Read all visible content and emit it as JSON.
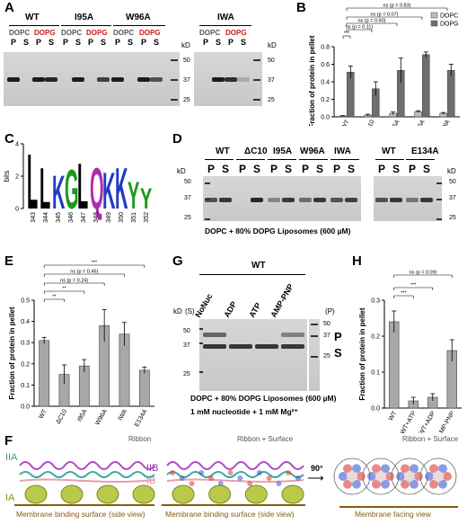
{
  "panels": {
    "A": {
      "label": "A",
      "groups": [
        "WT",
        "I95A",
        "W96A",
        "IWA"
      ],
      "lipids": [
        "DOPC",
        "DOPG"
      ],
      "lanes": [
        "P",
        "S"
      ],
      "kd": "kD",
      "markers": [
        "50",
        "37",
        "25"
      ]
    },
    "B": {
      "label": "B"
    },
    "C": {
      "label": "C",
      "ylabel": "bits",
      "positions": [
        "343",
        "344",
        "345",
        "346",
        "347",
        "348",
        "349",
        "350",
        "351",
        "352"
      ]
    },
    "D": {
      "label": "D",
      "groups": [
        "WT",
        "ΔC10",
        "I95A",
        "W96A",
        "IWA"
      ],
      "groups2": [
        "WT",
        "E134A"
      ],
      "lanes": [
        "P",
        "S"
      ],
      "kd": "kD",
      "markers": [
        "50",
        "37",
        "25"
      ],
      "caption": "DOPC + 80% DOPG Liposomes (600 µM)"
    },
    "E": {
      "label": "E"
    },
    "G": {
      "label": "G",
      "wt": "WT",
      "kd": "kD",
      "s_marker": "(S)",
      "p_marker": "(P)",
      "lanes": [
        "NoNuc",
        "ADP",
        "ATP",
        "AMP-PNP"
      ],
      "markers_left": [
        "50",
        "37",
        "25"
      ],
      "markers_right": [
        "50",
        "37",
        "25"
      ],
      "P": "P",
      "S": "S",
      "caption1": "DOPC + 80% DOPG Liposomes (600 µM)",
      "caption2": "1 mM nucleotide + 1 mM Mg²⁺"
    },
    "H": {
      "label": "H"
    },
    "F": {
      "label": "F",
      "title1": "Ribbon",
      "title2": "Ribbon + Surface",
      "title3": "Ribbon + Surface",
      "rotation": "90°",
      "dom_IIA": "IIA",
      "dom_IIB": "IIB",
      "dom_IB": "IB",
      "dom_IA": "IA",
      "caption1": "Membrane binding surface (side view)",
      "caption2": "Membrane binding surface (side view)",
      "caption3": "Membrane facing view"
    }
  },
  "chart_data": [
    {
      "panel": "B",
      "type": "bar",
      "categories": [
        "WT",
        "ΔC10",
        "I95A",
        "W96A",
        "IWA"
      ],
      "series": [
        {
          "name": "DOPC",
          "values": [
            0.01,
            0.02,
            0.04,
            0.06,
            0.04
          ],
          "errors": [
            0.005,
            0.01,
            0.015,
            0.01,
            0.01
          ],
          "color": "#bdbdbd"
        },
        {
          "name": "DOPG",
          "values": [
            0.51,
            0.32,
            0.53,
            0.71,
            0.53
          ],
          "errors": [
            0.07,
            0.08,
            0.14,
            0.03,
            0.07
          ],
          "color": "#6e6e6e"
        }
      ],
      "ylabel": "Fraction of protein in pellet",
      "ylim": [
        0,
        0.8
      ],
      "yticks": [
        "0.0",
        "0.2",
        "0.4",
        "0.6",
        "0.8"
      ],
      "legend": "top-right",
      "annotations": [
        "***",
        "ns (p = 0.11)",
        "ns (p = 0.90)",
        "ns (p = 0.07)",
        "ns (p = 0.83)"
      ]
    },
    {
      "panel": "C",
      "type": "logo",
      "positions": [
        343,
        344,
        345,
        346,
        347,
        348,
        349,
        350,
        351,
        352
      ],
      "top_letters": [
        "L",
        "L",
        "K",
        "G",
        "L",
        "Q",
        "K",
        "K",
        "Y",
        "Y"
      ],
      "heights": [
        3.5,
        2.6,
        2.1,
        2.5,
        2.9,
        2.6,
        2.3,
        2.6,
        1.7,
        1.3
      ],
      "ylim": [
        0,
        4
      ],
      "yticks": [
        "0",
        "2",
        "4"
      ]
    },
    {
      "panel": "E",
      "type": "bar",
      "categories": [
        "WT",
        "ΔC10",
        "I95A",
        "W96A",
        "IWA",
        "E134A"
      ],
      "values": [
        0.31,
        0.15,
        0.19,
        0.38,
        0.34,
        0.17
      ],
      "errors": [
        0.015,
        0.045,
        0.03,
        0.075,
        0.055,
        0.015
      ],
      "ylabel": "Fraction of protein in pellet",
      "ylim": [
        0,
        0.5
      ],
      "yticks": [
        "0.0",
        "0.1",
        "0.2",
        "0.3",
        "0.4",
        "0.5"
      ],
      "annotations": [
        "***",
        "ns (p = 0.46)",
        "ns (p = 0.24)",
        "**",
        "**"
      ]
    },
    {
      "panel": "H",
      "type": "bar",
      "categories": [
        "WT",
        "WT+ATP",
        "WT+ADP",
        "WT+AMP-PNP"
      ],
      "values": [
        0.24,
        0.02,
        0.03,
        0.16
      ],
      "errors": [
        0.03,
        0.01,
        0.01,
        0.03
      ],
      "ylabel": "Fraction of protein in pellet",
      "ylim": [
        0,
        0.3
      ],
      "yticks": [
        "0.0",
        "0.1",
        "0.2",
        "0.3"
      ],
      "annotations": [
        "ns (p = 0.09)",
        "***",
        "***",
        "***"
      ]
    }
  ]
}
